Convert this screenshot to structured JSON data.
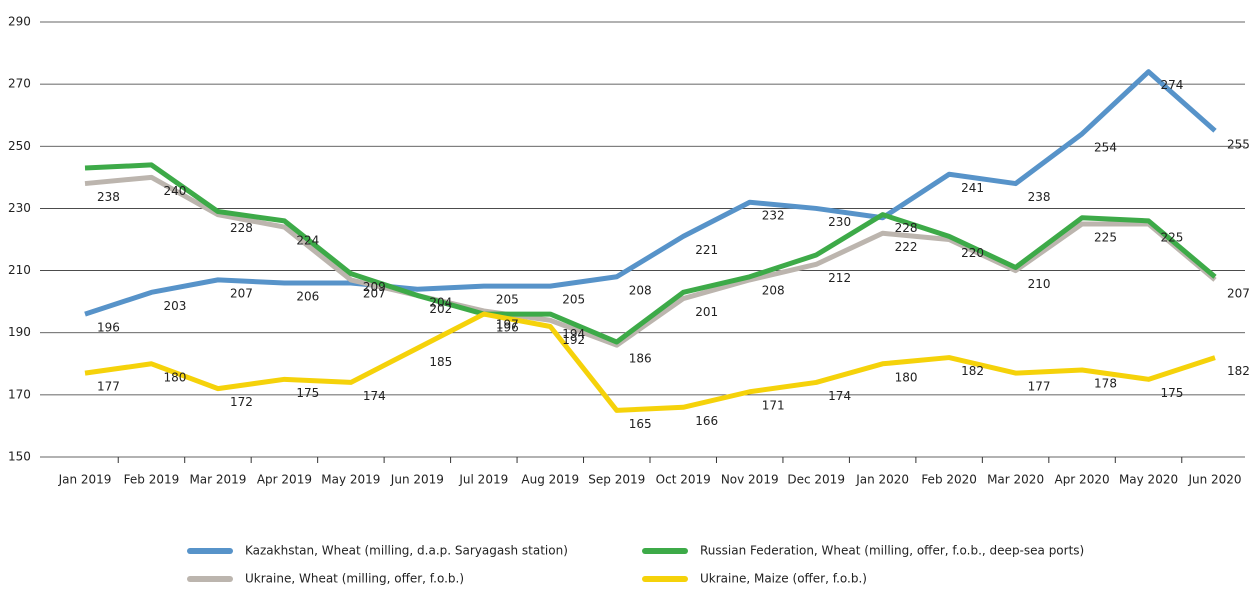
{
  "chart_data": {
    "type": "line",
    "categories": [
      "Jan 2019",
      "Feb 2019",
      "Mar 2019",
      "Apr 2019",
      "May 2019",
      "Jun 2019",
      "Jul 2019",
      "Aug 2019",
      "Sep 2019",
      "Oct 2019",
      "Nov 2019",
      "Dec 2019",
      "Jan 2020",
      "Feb 2020",
      "Mar 2020",
      "Apr 2020",
      "May 2020",
      "Jun 2020"
    ],
    "ylim": [
      150,
      290
    ],
    "yticks": [
      150,
      170,
      190,
      210,
      230,
      250,
      270,
      290
    ],
    "grid": true,
    "series": [
      {
        "name": "Kazakhstan, Wheat (milling, d.a.p. Saryagash station)",
        "color": "#5793c9",
        "values": [
          196,
          203,
          207,
          206,
          206,
          204,
          205,
          205,
          208,
          221,
          232,
          230,
          227,
          241,
          238,
          254,
          274,
          255
        ],
        "value_labels": [
          "196",
          "203",
          "207",
          "206",
          null,
          "204",
          "205",
          "205",
          "208",
          "221",
          "232",
          "230",
          null,
          "241",
          "238",
          "254",
          "274",
          "255"
        ]
      },
      {
        "name": "Russian Federation, Wheat (milling, offer, f.o.b., deep-sea ports)",
        "color": "#3daa48",
        "values": [
          243,
          244,
          229,
          226,
          209,
          202,
          196,
          196,
          187,
          203,
          208,
          215,
          228,
          221,
          211,
          227,
          226,
          208
        ],
        "value_labels": [
          null,
          null,
          null,
          null,
          "209",
          null,
          null,
          null,
          null,
          null,
          "208",
          null,
          "228",
          null,
          null,
          null,
          null,
          null
        ]
      },
      {
        "name": "Ukraine, Wheat (milling, offer, f.o.b.)",
        "color": "#bcb5ae",
        "values": [
          238,
          240,
          228,
          224,
          207,
          202,
          197,
          194,
          186,
          201,
          207,
          212,
          222,
          220,
          210,
          225,
          225,
          207
        ],
        "value_labels": [
          "238",
          "240",
          "228",
          "224",
          "207",
          "202",
          "197",
          "194",
          "186",
          "201",
          null,
          "212",
          "222",
          "220",
          "210",
          "225",
          "225",
          "207"
        ]
      },
      {
        "name": "Ukraine, Maize (offer, f.o.b.)",
        "color": "#f5d20a",
        "values": [
          177,
          180,
          172,
          175,
          174,
          185,
          196,
          192,
          165,
          166,
          171,
          174,
          180,
          182,
          177,
          178,
          175,
          182
        ],
        "value_labels": [
          "177",
          "180",
          "172",
          "175",
          "174",
          "185",
          "196",
          "192",
          "165",
          "166",
          "171",
          "174",
          "180",
          "182",
          "177",
          "178",
          "175",
          "182"
        ]
      }
    ]
  }
}
